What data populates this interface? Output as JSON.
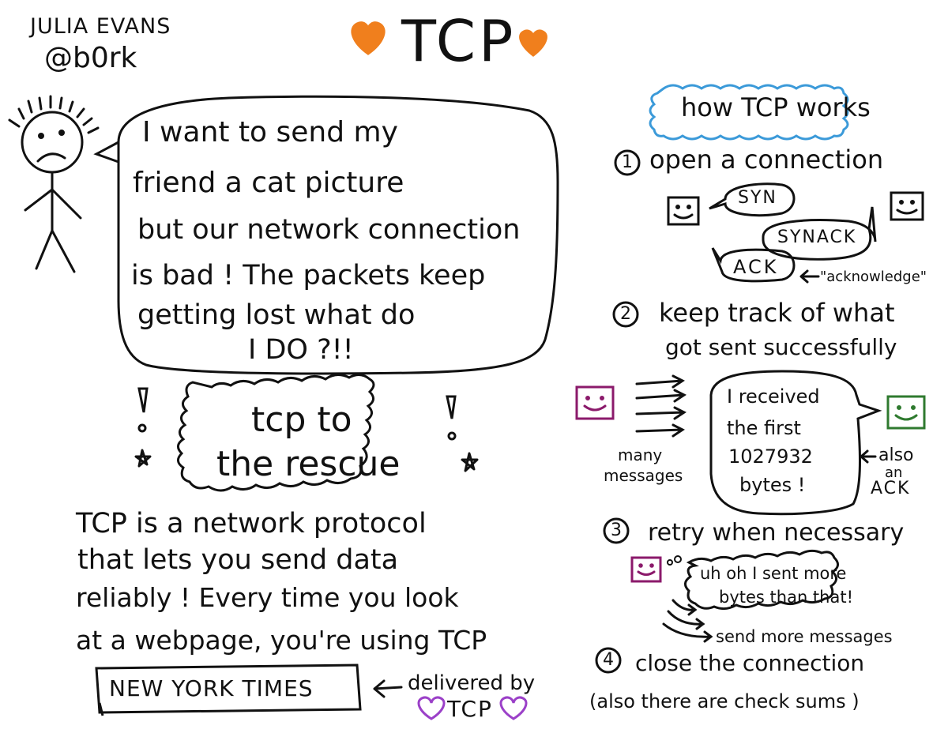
{
  "author": {
    "name": "JULIA EVANS",
    "handle": "@b0rk"
  },
  "title": "TCP",
  "speech": {
    "lines": [
      "I want to send my",
      "friend a cat picture",
      "but our network connection",
      "is bad ! The packets keep",
      "getting lost what do",
      "I DO ?!!"
    ]
  },
  "rescue": {
    "line1": "tcp to",
    "line2": "the rescue"
  },
  "description": {
    "lines": [
      "TCP is a network protocol",
      "that lets you send data",
      "reliably ! Every time you look",
      "at a webpage, you're using TCP"
    ]
  },
  "nyt": {
    "box": "NEW YORK TIMES",
    "delivered": "delivered by",
    "tcp": "TCP"
  },
  "how": {
    "title": "how TCP works",
    "step1": {
      "num": "1",
      "text": "open a connection"
    },
    "syn": "SYN",
    "synack": "SYNACK",
    "ack": "ACK",
    "ack_note": "\"acknowledge\"",
    "step2": {
      "num": "2",
      "line1": "keep track of what",
      "line2": "got sent successfully"
    },
    "many": {
      "line1": "many",
      "line2": "messages"
    },
    "received": [
      "I received",
      "the first",
      "1027932",
      "bytes !"
    ],
    "also": {
      "line1": "also",
      "line2": "an",
      "line3": "ACK"
    },
    "step3": {
      "num": "3",
      "text": "retry when necessary"
    },
    "uhoh": {
      "line1": "uh oh I sent more",
      "line2": "bytes than that!"
    },
    "send_more": "send more messages",
    "step4": {
      "num": "4",
      "text": "close the connection"
    },
    "checksums": "(also there are check sums )"
  },
  "colors": {
    "heart_orange": "#f07f1d",
    "box_blue": "#3b9ad9",
    "face_purple": "#8b1a6b",
    "face_green": "#2f7a2f",
    "heart_purple": "#9b40c8"
  }
}
